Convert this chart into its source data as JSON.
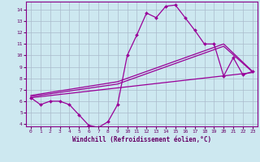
{
  "xlabel": "Windchill (Refroidissement éolien,°C)",
  "background_color": "#cde8f0",
  "grid_color": "#aabbcc",
  "line_color": "#990099",
  "xlim": [
    -0.5,
    23.5
  ],
  "ylim": [
    3.8,
    14.7
  ],
  "yticks": [
    4,
    5,
    6,
    7,
    8,
    9,
    10,
    11,
    12,
    13,
    14
  ],
  "xticks": [
    0,
    1,
    2,
    3,
    4,
    5,
    6,
    7,
    8,
    9,
    10,
    11,
    12,
    13,
    14,
    15,
    16,
    17,
    18,
    19,
    20,
    21,
    22,
    23
  ],
  "curve1_x": [
    0,
    1,
    2,
    3,
    4,
    5,
    6,
    7,
    8,
    9,
    10,
    11,
    12,
    13,
    14,
    15,
    16,
    17,
    18,
    19,
    20,
    21,
    22,
    23
  ],
  "curve1_y": [
    6.3,
    5.7,
    6.0,
    6.0,
    5.7,
    4.8,
    3.9,
    3.7,
    4.2,
    5.7,
    10.0,
    11.8,
    13.7,
    13.3,
    14.3,
    14.4,
    13.3,
    12.2,
    11.0,
    11.0,
    8.2,
    9.8,
    8.3,
    8.6
  ],
  "line2_x": [
    0,
    9,
    20,
    23
  ],
  "line2_y": [
    6.5,
    7.7,
    11.0,
    8.6
  ],
  "line3_x": [
    0,
    9,
    20,
    23
  ],
  "line3_y": [
    6.4,
    7.5,
    10.8,
    8.55
  ],
  "line4_x": [
    0,
    23
  ],
  "line4_y": [
    6.3,
    8.5
  ],
  "font_family": "monospace"
}
